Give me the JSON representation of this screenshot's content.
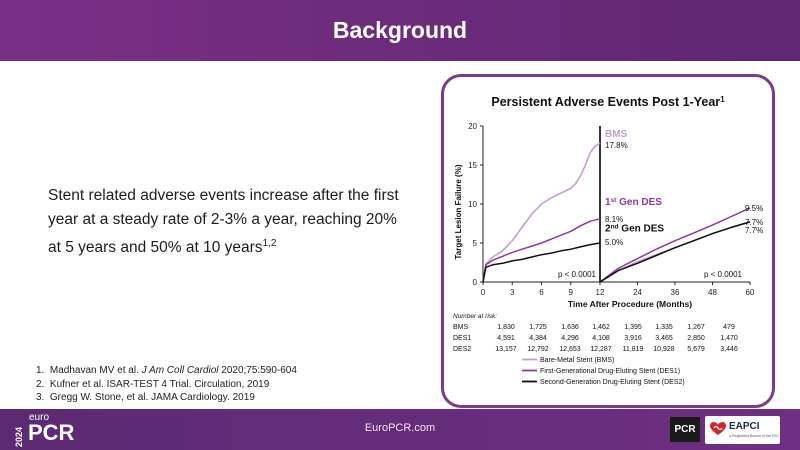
{
  "slide": {
    "title": "Background",
    "bullet_text": "Stent related adverse events increase after the first year at a steady rate of 2-3% a year, reaching 20% at 5 years and 50% at 10 years",
    "bullet_sup": "1,2",
    "references": [
      {
        "num": "1.",
        "pre": "Madhavan MV et al. ",
        "italic": "J Am Coll Cardiol",
        "post": " 2020;75:590-604"
      },
      {
        "num": "2.",
        "pre": "Kufner et al.  ISAR-TEST 4 Trial. Circulation, 2019",
        "italic": "",
        "post": ""
      },
      {
        "num": "3.",
        "pre": "Gregg W. Stone, et al. JAMA Cardiology. 2019",
        "italic": "",
        "post": ""
      }
    ]
  },
  "footer": {
    "year": "2024",
    "logo_top": "euro",
    "logo_main": "PCR",
    "site": "EuroPCR.com",
    "badge": "PCR",
    "partner": "EAPCI",
    "partner_sub": "A Registered Branch of the ESC"
  },
  "colors": {
    "purple": "#7a2f86",
    "bms": "#c49ccd",
    "des1": "#8b3a9a",
    "des2": "#111111"
  },
  "chart_data": {
    "type": "line",
    "title": "Persistent Adverse Events Post 1-Year",
    "title_sup": "1",
    "xlabel": "Time After Procedure (Months)",
    "ylabel": "Target Lesion Failure (%)",
    "ylim": [
      0,
      20
    ],
    "y_ticks": [
      0,
      5,
      10,
      15,
      20
    ],
    "x_ticks_left": [
      0,
      3,
      6,
      9,
      12
    ],
    "x_ticks_right": [
      12,
      24,
      36,
      48,
      60
    ],
    "pvalue_left": "p < 0.0001",
    "pvalue_right": "p < 0.0001",
    "series": [
      {
        "name": "Bare-Metal Stent (BMS)",
        "key": "bms",
        "color": "#c49ccd",
        "left": {
          "x": [
            0,
            0.3,
            1,
            2,
            3,
            4,
            5,
            6,
            7,
            8,
            9,
            9.5,
            10,
            10.5,
            11,
            11.5,
            12
          ],
          "y": [
            0,
            2.3,
            3.2,
            4.0,
            5.3,
            7.0,
            8.7,
            10.0,
            10.8,
            11.4,
            12.0,
            12.6,
            13.6,
            15.0,
            16.6,
            17.4,
            17.8
          ]
        },
        "right": {
          "x": [
            12,
            18,
            24,
            30,
            36,
            42,
            48,
            54,
            60
          ],
          "y": [
            0,
            1.5,
            2.6,
            3.5,
            4.4,
            5.3,
            6.2,
            7.0,
            7.7
          ]
        }
      },
      {
        "name": "First-Generational Drug-Eluting Stent (DES1)",
        "key": "des1",
        "color": "#8b3a9a",
        "left": {
          "x": [
            0,
            0.3,
            1,
            2,
            3,
            4,
            5,
            6,
            7,
            8,
            9,
            10,
            11,
            12
          ],
          "y": [
            0,
            2.2,
            2.8,
            3.3,
            3.8,
            4.2,
            4.6,
            5.0,
            5.5,
            6.0,
            6.5,
            7.2,
            7.8,
            8.1
          ]
        },
        "right": {
          "x": [
            12,
            18,
            24,
            30,
            36,
            42,
            48,
            54,
            60
          ],
          "y": [
            0,
            1.8,
            3.0,
            4.2,
            5.3,
            6.3,
            7.3,
            8.4,
            9.5
          ]
        }
      },
      {
        "name": "Second-Generation Drug-Eluting Stent (DES2)",
        "key": "des2",
        "color": "#111111",
        "left": {
          "x": [
            0,
            0.3,
            1,
            2,
            3,
            4,
            5,
            6,
            7,
            8,
            9,
            10,
            11,
            12
          ],
          "y": [
            0,
            1.9,
            2.2,
            2.4,
            2.7,
            2.9,
            3.2,
            3.5,
            3.7,
            4.0,
            4.2,
            4.5,
            4.8,
            5.0
          ]
        },
        "right": {
          "x": [
            12,
            18,
            24,
            30,
            36,
            42,
            48,
            54,
            60
          ],
          "y": [
            0,
            1.5,
            2.4,
            3.4,
            4.4,
            5.3,
            6.2,
            7.0,
            7.7
          ]
        }
      }
    ],
    "annotations": [
      {
        "key": "bms",
        "label": "BMS",
        "sup": "",
        "suffix": "",
        "value": "17.8%"
      },
      {
        "key": "des1",
        "label": "1",
        "sup": "st",
        "suffix": " Gen DES",
        "value": "8.1%"
      },
      {
        "key": "des2",
        "label": "2",
        "sup": "nd",
        "suffix": " Gen DES",
        "value": "5.0%"
      }
    ],
    "end_labels": [
      "9.5%",
      "7.7%",
      "7.7%"
    ],
    "risk_table": {
      "header": "Number at risk:",
      "rows": [
        {
          "label": "BMS",
          "values": [
            "1,830",
            "1,725",
            "1,636",
            "1,462",
            "1,395",
            "1,335",
            "1,267",
            "479"
          ]
        },
        {
          "label": "DES1",
          "values": [
            "4,591",
            "4,384",
            "4,296",
            "4,108",
            "3,916",
            "3,465",
            "2,850",
            "1,470"
          ]
        },
        {
          "label": "DES2",
          "values": [
            "13,157",
            "12,792",
            "12,653",
            "12,287",
            "11,819",
            "10,928",
            "5,679",
            "3,446"
          ]
        }
      ]
    },
    "legend": [
      {
        "key": "bms",
        "label": "Bare-Metal Stent (BMS)"
      },
      {
        "key": "des1",
        "label": "First-Generational Drug-Eluting Stent (DES1)"
      },
      {
        "key": "des2",
        "label": "Second-Generation Drug-Eluting Stent (DES2)"
      }
    ]
  }
}
